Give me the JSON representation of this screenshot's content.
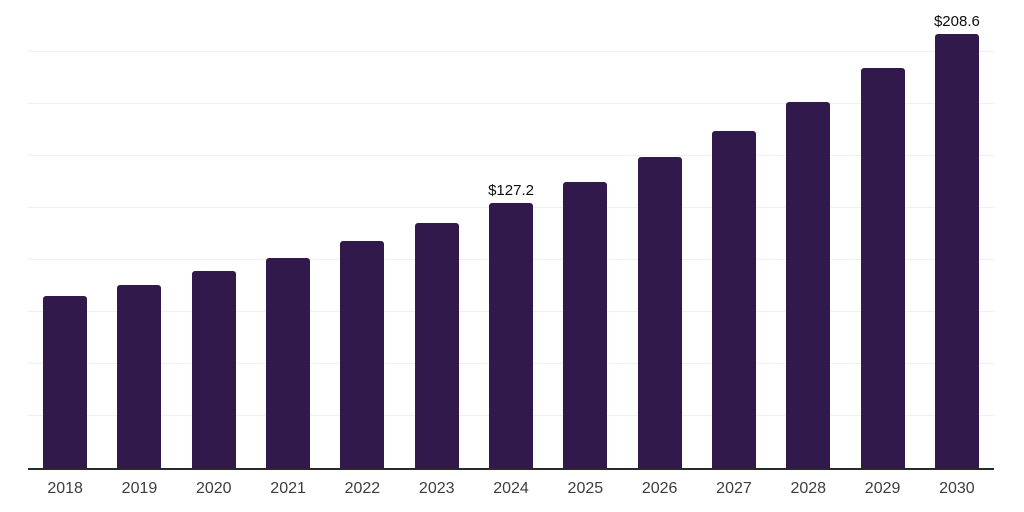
{
  "chart_data": {
    "type": "bar",
    "title": "",
    "xlabel": "",
    "ylabel": "",
    "categories": [
      "2018",
      "2019",
      "2020",
      "2021",
      "2022",
      "2023",
      "2024",
      "2025",
      "2026",
      "2027",
      "2028",
      "2029",
      "2030"
    ],
    "values": [
      82.5,
      88.0,
      94.6,
      101.2,
      109.3,
      117.9,
      127.2,
      137.7,
      149.4,
      161.8,
      175.8,
      192.1,
      208.6
    ],
    "data_labels": [
      "",
      "",
      "",
      "",
      "",
      "",
      "$127.2",
      "",
      "",
      "",
      "",
      "",
      "$208.6"
    ],
    "ylim": [
      0,
      225
    ],
    "gridline_step": 25,
    "grid": "horizontal",
    "legend": "none",
    "colors": {
      "bar": "#32194b",
      "gridline": "#efefef",
      "axis_line": "#2a2a2a",
      "tick_label": "#3d3d3d",
      "data_label": "#0d0d0d",
      "background": "#ffffff"
    }
  }
}
